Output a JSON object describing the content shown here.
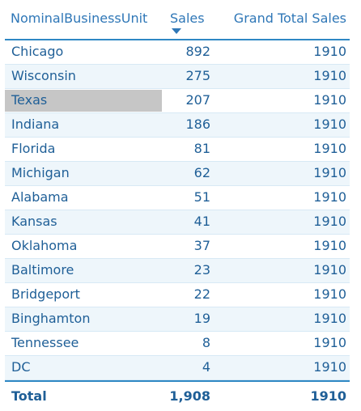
{
  "columns": {
    "business_unit": "NominalBusinessUnit",
    "sales": "Sales",
    "grand_total_sales": "Grand Total Sales"
  },
  "rows": [
    {
      "unit": "Chicago",
      "sales": "892",
      "grand": "1910"
    },
    {
      "unit": "Wisconsin",
      "sales": "275",
      "grand": "1910"
    },
    {
      "unit": "Texas",
      "sales": "207",
      "grand": "1910",
      "selected": true
    },
    {
      "unit": "Indiana",
      "sales": "186",
      "grand": "1910"
    },
    {
      "unit": "Florida",
      "sales": "81",
      "grand": "1910"
    },
    {
      "unit": "Michigan",
      "sales": "62",
      "grand": "1910"
    },
    {
      "unit": "Alabama",
      "sales": "51",
      "grand": "1910"
    },
    {
      "unit": "Kansas",
      "sales": "41",
      "grand": "1910"
    },
    {
      "unit": "Oklahoma",
      "sales": "37",
      "grand": "1910"
    },
    {
      "unit": "Baltimore",
      "sales": "23",
      "grand": "1910"
    },
    {
      "unit": "Bridgeport",
      "sales": "22",
      "grand": "1910"
    },
    {
      "unit": "Binghamton",
      "sales": "19",
      "grand": "1910"
    },
    {
      "unit": "Tennessee",
      "sales": "8",
      "grand": "1910"
    },
    {
      "unit": "DC",
      "sales": "4",
      "grand": "1910"
    }
  ],
  "total": {
    "label": "Total",
    "sales": "1,908",
    "grand": "1910"
  },
  "sort_icon": "sort-descending-icon",
  "colors": {
    "header_text": "#2f77b7",
    "accent_border": "#2f88c4",
    "row_alt": "#eef6fb",
    "selection": "#c6c6c6"
  }
}
